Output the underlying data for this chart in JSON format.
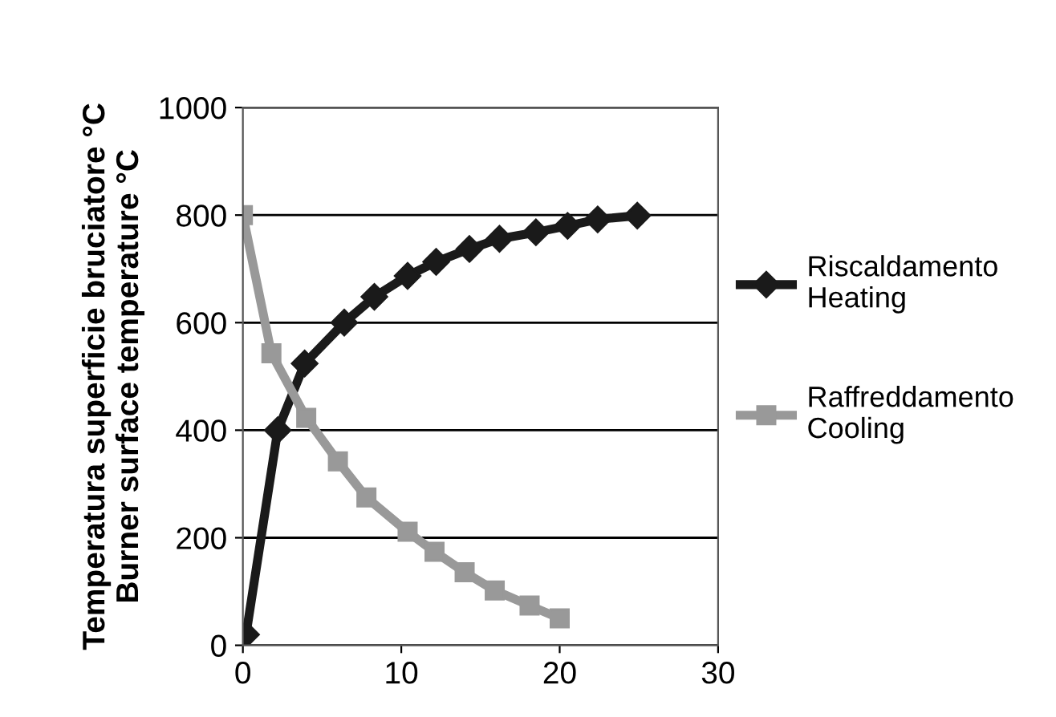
{
  "chart_data": {
    "type": "line",
    "ylabel": "Temperatura superficie bruciatore °C\nBurner surface temperature °C",
    "xlim": [
      0,
      30
    ],
    "xticks": [
      0,
      10,
      20,
      30
    ],
    "ylim": [
      0,
      1000
    ],
    "yticks": [
      0,
      200,
      400,
      600,
      800,
      1000
    ],
    "grid": "y",
    "legend": "right",
    "series": [
      {
        "name": "Riscaldamento\nHeating",
        "color": "#1a1a1a",
        "marker": "diamond",
        "x": [
          0.2,
          2.2,
          3.9,
          6.4,
          8.3,
          10.4,
          12.2,
          14.3,
          16.2,
          18.5,
          20.5,
          22.4,
          24.9
        ],
        "values": [
          20,
          400,
          524,
          600,
          648,
          687,
          713,
          737,
          756,
          768,
          780,
          792,
          799
        ]
      },
      {
        "name": "Raffreddamento\nCooling",
        "color": "#999999",
        "marker": "square",
        "x": [
          0,
          1.8,
          4.0,
          6.0,
          7.8,
          10.4,
          12.1,
          14.0,
          15.9,
          18.1,
          20.0
        ],
        "values": [
          800,
          543,
          423,
          342,
          275,
          211,
          174,
          136,
          102,
          74,
          50
        ]
      }
    ]
  }
}
